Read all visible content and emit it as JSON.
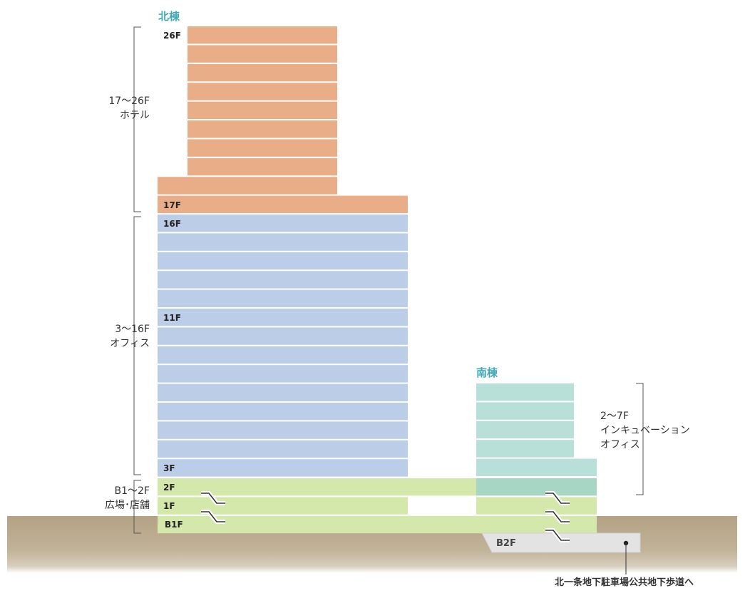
{
  "buildings": {
    "north": {
      "name": "北棟"
    },
    "south": {
      "name": "南棟"
    }
  },
  "floor_labels": {
    "n26": "26F",
    "n17": "17F",
    "n16": "16F",
    "n11": "11F",
    "n3": "3F",
    "n2": "2F",
    "n1": "1F",
    "nb1": "B1F",
    "b2": "B2F"
  },
  "zones": {
    "hotel": {
      "floors": "17～26F",
      "name": "ホテル"
    },
    "office": {
      "floors": "3～16F",
      "name": "オフィス"
    },
    "retail": {
      "floors": "B1～2F",
      "name": "広場･店舗"
    },
    "incubation": {
      "floors": "2～7F",
      "name_line1": "インキュベーション",
      "name_line2": "オフィス"
    }
  },
  "exit_note": "北一条地下駐車場公共地下歩道へ",
  "colors": {
    "hotel": "#e9ae88",
    "office": "#bccde8",
    "retail": "#d5e8ab",
    "incubation": "#b8dfd8",
    "incubation_retail": "#a7d6c4",
    "ground": "#b3a284",
    "parking": "#e3e3e3",
    "accent": "#3fa9b5"
  }
}
